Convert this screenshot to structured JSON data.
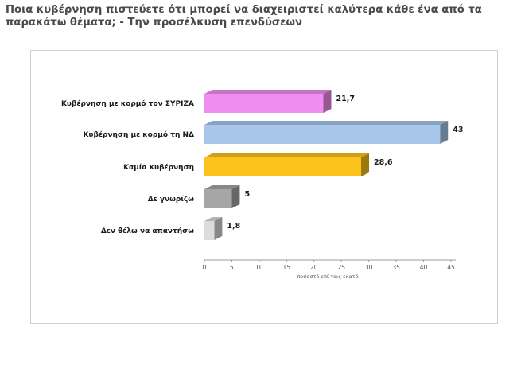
{
  "header": {
    "title": "Ποια κυβέρνηση  πιστεύετε ότι μπορεί να διαχειριστεί καλύτερα κάθε ένα από τα παρακάτω θέματα;  - Την προσέλκυση επενδύσεων"
  },
  "chart_data": {
    "type": "bar",
    "orientation": "horizontal",
    "style": "3d",
    "categories": [
      "Κυβέρνηση με κορμό τον ΣΥΡΙΖΑ",
      "Κυβέρνηση με κορμό τη ΝΔ",
      "Καμία κυβέρνηση",
      "Δε γνωρίζω",
      "Δεν θέλω να απαντήσω"
    ],
    "values": [
      21.7,
      43,
      28.6,
      5,
      1.8
    ],
    "value_labels": [
      "21,7",
      "43",
      "28,6",
      "5",
      "1,8"
    ],
    "colors": [
      "#f08ef0",
      "#a7c6ea",
      "#fcc21b",
      "#a6a6a6",
      "#dcdcdc"
    ],
    "xlabel": "ποσοστό επί τοις εκατό",
    "ylabel": "",
    "xlim": [
      0,
      45
    ],
    "xticks": [
      0,
      5,
      10,
      15,
      20,
      25,
      30,
      35,
      40,
      45
    ],
    "grid": false,
    "legend": "none"
  }
}
